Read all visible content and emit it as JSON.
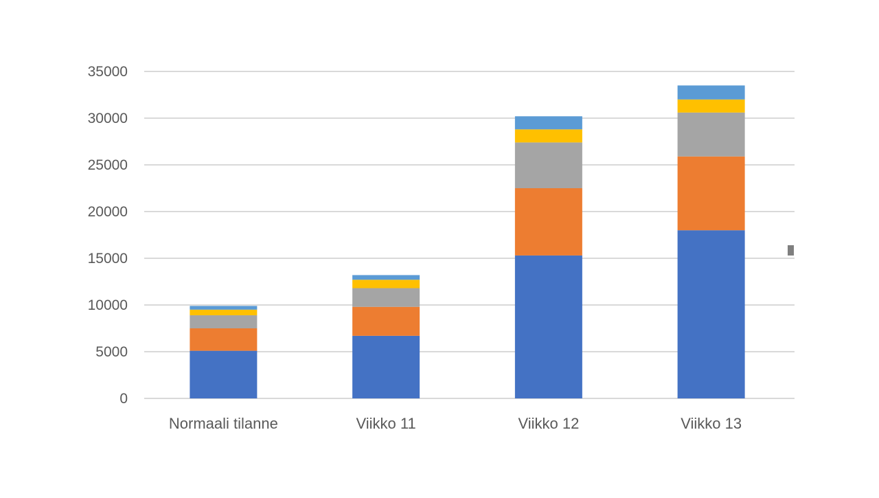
{
  "chart_data": {
    "type": "bar",
    "stacked": true,
    "categories": [
      "Normaali tilanne",
      "Viikko 11",
      "Viikko 12",
      "Viikko 13"
    ],
    "series": [
      {
        "color": "#4472C4",
        "values": [
          5100,
          6700,
          15300,
          18000
        ]
      },
      {
        "color": "#ED7D31",
        "values": [
          2400,
          3100,
          7200,
          7900
        ]
      },
      {
        "color": "#A5A5A5",
        "values": [
          1400,
          2000,
          4900,
          4700
        ]
      },
      {
        "color": "#FFC000",
        "values": [
          600,
          900,
          1400,
          1400
        ]
      },
      {
        "color": "#5B9BD5",
        "values": [
          400,
          500,
          1400,
          1500
        ]
      }
    ],
    "y_ticks": [
      "0",
      "5000",
      "10000",
      "15000",
      "20000",
      "25000",
      "30000",
      "35000"
    ],
    "ylim": [
      0,
      35000
    ],
    "grid": true,
    "title": "",
    "xlabel": "",
    "ylabel": ""
  }
}
